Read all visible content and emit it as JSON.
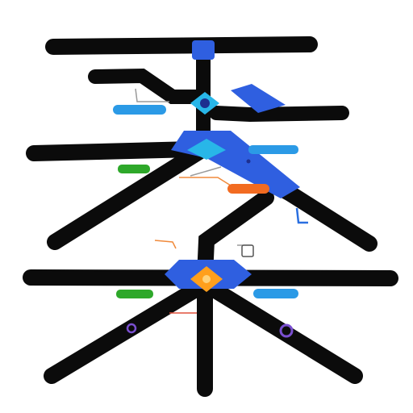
{
  "colors": {
    "track": "#0b0b0b",
    "node_blue": "#2f5fe0",
    "node_dark": "#1d2f8f",
    "node_cyan": "#28b6e8",
    "node_orange": "#ff9f1c",
    "tag_blue": "#2b9ae6",
    "tag_green": "#2ea82a",
    "tag_orange": "#f26b21",
    "wire_orange": "#f08a3c",
    "wire_blue": "#2a6fe0",
    "wire_gray": "#9a9a9a",
    "badge_purple": "#7a4fd0"
  },
  "icons": [
    "hub-node-icon",
    "gear-node-icon",
    "orange-core-icon",
    "purple-ring-icon"
  ],
  "caption": {
    "line1": "",
    "line2": ""
  },
  "labels": {
    "green_tag_1": "",
    "green_tag_2": "",
    "blue_tag_1": "",
    "blue_tag_2": "",
    "orange_tag": ""
  },
  "side_texts": {
    "left_block": "",
    "right_block": ""
  }
}
